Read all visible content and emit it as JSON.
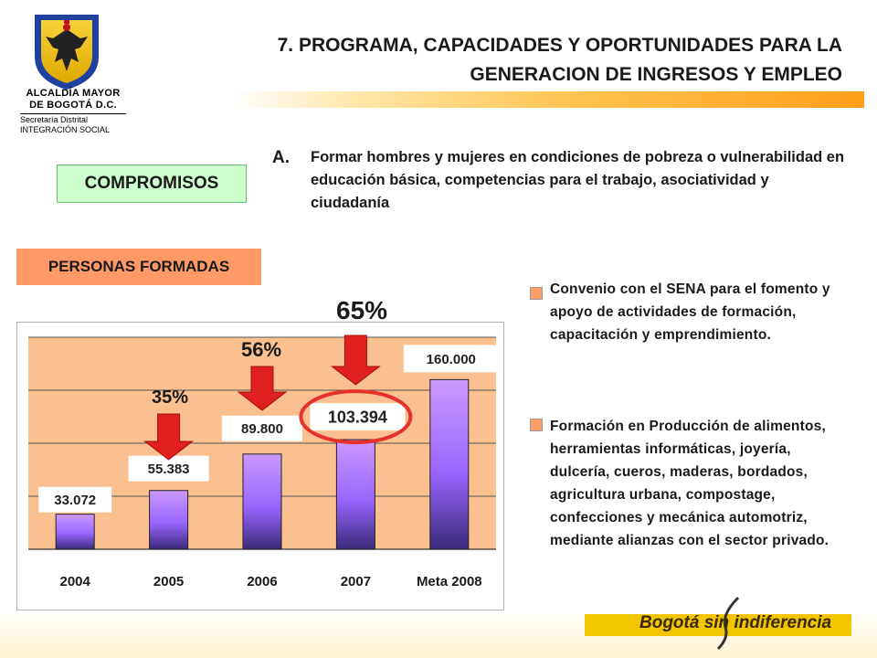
{
  "header": {
    "org_line1": "ALCALDÍA MAYOR",
    "org_line2": "DE BOGOTÁ D.C.",
    "org_line3": "Secretaría Distrital",
    "org_line4": "INTEGRACIÓN SOCIAL",
    "title_line1": "7. PROGRAMA, CAPACIDADES Y OPORTUNIDADES PARA LA",
    "title_line2": "GENERACION DE INGRESOS Y EMPLEO"
  },
  "commitments": {
    "label": "COMPROMISOS",
    "item_letter": "A.",
    "item_text": "Formar hombres y mujeres en condiciones de pobreza o vulnerabilidad en educación básica, competencias para el trabajo, asociatividad y ciudadanía"
  },
  "section": {
    "label": "PERSONAS FORMADAS"
  },
  "legend": [
    {
      "text": "Convenio con el SENA para el fomento y apoyo de actividades de formación, capacitación y emprendimiento.",
      "color": "#ff9f66"
    },
    {
      "text": "Formación en Producción de alimentos, herramientas informáticas, joyería, dulcería, cueros, maderas, bordados, agricultura urbana, compostage, confecciones y mecánica automotriz, mediante alianzas con el sector privado.",
      "color": "#ff9f66"
    }
  ],
  "chart_data": {
    "type": "bar",
    "categories": [
      "2004",
      "2005",
      "2006",
      "2007",
      "Meta 2008"
    ],
    "values": [
      33072,
      55383,
      89800,
      103394,
      160000
    ],
    "value_labels": [
      "33.072",
      "55.383",
      "89.800",
      "103.394",
      "160.000"
    ],
    "ylim": [
      0,
      200000
    ],
    "grid": true,
    "plot_background": "#fac090",
    "bar_color": "#9966ff",
    "annotations": [
      {
        "text": "35%",
        "category": "2005"
      },
      {
        "text": "56%",
        "category": "2006"
      },
      {
        "text": "65%",
        "category": "2007"
      }
    ],
    "highlight_color": "#e8302a",
    "arrow_color": "#e02020"
  },
  "footer": {
    "slogan": "Bogotá sin indiferencia"
  }
}
